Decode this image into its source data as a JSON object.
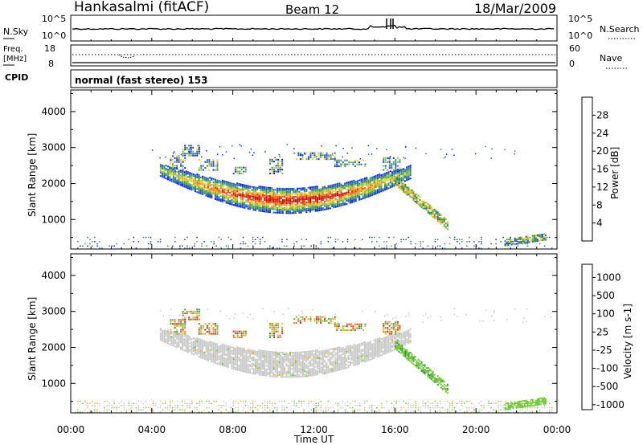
{
  "header": {
    "station": "Hankasalmi (fitACF)",
    "beam": "Beam 12",
    "date": "18/Mar/2009"
  },
  "noise_panel": {
    "left_label": "N.Sky",
    "right_label": "N.Search",
    "left_ticks": [
      "10^5",
      "10^0"
    ],
    "right_ticks": [
      "10^5",
      "10^0"
    ]
  },
  "freq_panel": {
    "left_label_1": "Freq.",
    "left_label_2": "[MHz]",
    "right_label": "Nave",
    "left_ticks": [
      "18",
      "8"
    ],
    "right_ticks": [
      "60",
      "0"
    ]
  },
  "cpid": {
    "label": "CPID",
    "mode": "normal (fast stereo) 153"
  },
  "chart_data": [
    {
      "type": "heatmap",
      "parameter": "Power",
      "ylabel": "Slant Range [km]",
      "xlabel": "",
      "ylim": [
        180,
        4600
      ],
      "xlim_hours": [
        0,
        24
      ],
      "yticks": [
        "1000",
        "2000",
        "3000",
        "4000"
      ],
      "colorbar": {
        "label": "Power [dB]",
        "ticks": [
          "4",
          "8",
          "12",
          "16",
          "20",
          "24",
          "28"
        ],
        "range": [
          0,
          32
        ],
        "colors": [
          "#0020ff",
          "#1a50c8",
          "#2a7a8a",
          "#3a9a50",
          "#7cc030",
          "#e6d21e",
          "#f2a015",
          "#f26a0a",
          "#ee2800",
          "#d80000"
        ]
      }
    },
    {
      "type": "heatmap",
      "parameter": "Velocity",
      "ylabel": "Slant Range [km]",
      "xlabel": "Time UT",
      "ylim": [
        180,
        4600
      ],
      "xlim_hours": [
        0,
        24
      ],
      "yticks": [
        "1000",
        "2000",
        "3000",
        "4000"
      ],
      "xticks": [
        "00:00",
        "04:00",
        "08:00",
        "12:00",
        "16:00",
        "20:00",
        "00:00"
      ],
      "colorbar": {
        "label": "Velocity [m s-1]",
        "ticks": [
          "1000",
          "500",
          "100",
          "25",
          "-25",
          "-100",
          "-500",
          "-1000"
        ],
        "colors": [
          "#1a2fd0",
          "#2c5fb8",
          "#3c9a40",
          "#6ccc30",
          "#c8c8c8",
          "#f2b020",
          "#f27a0a",
          "#ee2800"
        ]
      }
    }
  ]
}
